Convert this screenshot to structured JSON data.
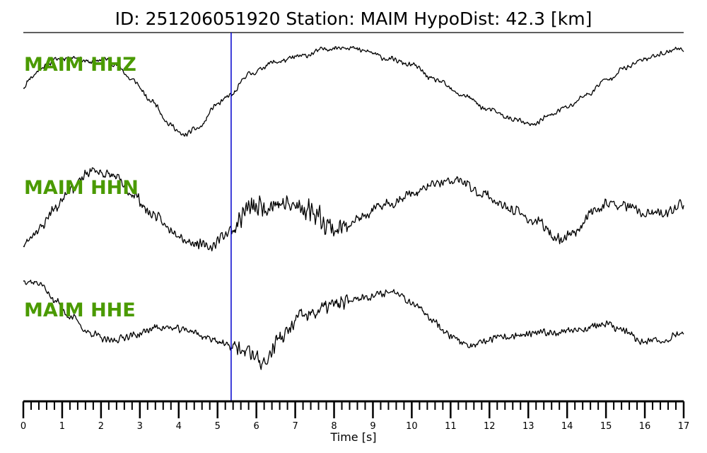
{
  "header": {
    "title": "ID: 251206051920   Station: MAIM   HypoDist:     42.3 [km]"
  },
  "colors": {
    "trace": "#000000",
    "pick_line": "#0000cc",
    "channel_label": "#4a9a00",
    "axis": "#000000"
  },
  "chart_data": {
    "type": "line",
    "title": "ID: 251206051920   Station: MAIM   HypoDist:     42.3 [km]",
    "xlabel": "Time [s]",
    "ylabel": "",
    "xlim": [
      0,
      17
    ],
    "x_ticks": [
      "0",
      "1",
      "2",
      "3",
      "4",
      "5",
      "6",
      "7",
      "8",
      "9",
      "10",
      "11",
      "12",
      "13",
      "14",
      "15",
      "16",
      "17"
    ],
    "minor_tick_step": 0.2,
    "grid": false,
    "pick_time": 5.35,
    "normalized_amplitude": true,
    "series": [
      {
        "name": "MAIM HHZ",
        "noise": 0.05,
        "seed": 11,
        "points": [
          [
            0,
            0.08
          ],
          [
            0.2,
            0.25
          ],
          [
            0.5,
            0.42
          ],
          [
            0.9,
            0.55
          ],
          [
            1.3,
            0.58
          ],
          [
            1.7,
            0.5
          ],
          [
            2.1,
            0.55
          ],
          [
            2.4,
            0.45
          ],
          [
            2.8,
            0.2
          ],
          [
            3.3,
            -0.15
          ],
          [
            3.8,
            -0.55
          ],
          [
            4.1,
            -0.72
          ],
          [
            4.5,
            -0.6
          ],
          [
            5.0,
            -0.2
          ],
          [
            5.35,
            -0.05
          ],
          [
            5.8,
            0.3
          ],
          [
            6.5,
            0.5
          ],
          [
            7.2,
            0.6
          ],
          [
            7.8,
            0.72
          ],
          [
            8.3,
            0.75
          ],
          [
            8.8,
            0.68
          ],
          [
            9.4,
            0.55
          ],
          [
            10.0,
            0.45
          ],
          [
            10.6,
            0.2
          ],
          [
            11.3,
            -0.05
          ],
          [
            12.0,
            -0.3
          ],
          [
            12.6,
            -0.45
          ],
          [
            13.1,
            -0.55
          ],
          [
            13.5,
            -0.4
          ],
          [
            14.0,
            -0.25
          ],
          [
            14.5,
            -0.05
          ],
          [
            15.0,
            0.2
          ],
          [
            15.5,
            0.4
          ],
          [
            16.0,
            0.55
          ],
          [
            16.5,
            0.65
          ],
          [
            16.8,
            0.72
          ],
          [
            17.0,
            0.7
          ]
        ]
      },
      {
        "name": "MAIM HHN",
        "noise": 0.12,
        "seed": 23,
        "points": [
          [
            0,
            -0.7
          ],
          [
            0.4,
            -0.4
          ],
          [
            0.8,
            0.0
          ],
          [
            1.2,
            0.4
          ],
          [
            1.8,
            0.75
          ],
          [
            2.3,
            0.65
          ],
          [
            2.8,
            0.3
          ],
          [
            3.3,
            -0.1
          ],
          [
            3.8,
            -0.4
          ],
          [
            4.3,
            -0.65
          ],
          [
            4.8,
            -0.75
          ],
          [
            5.2,
            -0.5
          ],
          [
            5.35,
            -0.4
          ],
          [
            5.8,
            0.0
          ],
          [
            6.5,
            0.1
          ],
          [
            7.3,
            0.0
          ],
          [
            8.1,
            -0.4
          ],
          [
            8.6,
            -0.2
          ],
          [
            9.4,
            0.1
          ],
          [
            10.0,
            0.3
          ],
          [
            10.7,
            0.5
          ],
          [
            11.2,
            0.55
          ],
          [
            11.8,
            0.3
          ],
          [
            12.5,
            0.0
          ],
          [
            13.2,
            -0.25
          ],
          [
            13.8,
            -0.6
          ],
          [
            14.2,
            -0.45
          ],
          [
            14.6,
            -0.1
          ],
          [
            15.0,
            0.1
          ],
          [
            15.5,
            0.05
          ],
          [
            16.0,
            -0.1
          ],
          [
            16.5,
            -0.1
          ],
          [
            17.0,
            0.1
          ]
        ]
      },
      {
        "name": "MAIM HHE",
        "noise": 0.08,
        "seed": 37,
        "points": [
          [
            0,
            0.95
          ],
          [
            0.4,
            0.9
          ],
          [
            0.8,
            0.6
          ],
          [
            1.2,
            0.3
          ],
          [
            1.7,
            0.0
          ],
          [
            2.2,
            -0.15
          ],
          [
            2.8,
            -0.05
          ],
          [
            3.5,
            0.1
          ],
          [
            4.2,
            0.05
          ],
          [
            4.8,
            -0.1
          ],
          [
            5.35,
            -0.25
          ],
          [
            5.8,
            -0.35
          ],
          [
            6.2,
            -0.55
          ],
          [
            6.6,
            -0.1
          ],
          [
            7.2,
            0.3
          ],
          [
            8.0,
            0.5
          ],
          [
            8.8,
            0.65
          ],
          [
            9.6,
            0.75
          ],
          [
            10.0,
            0.55
          ],
          [
            10.5,
            0.25
          ],
          [
            11.0,
            -0.05
          ],
          [
            11.5,
            -0.25
          ],
          [
            12.2,
            -0.1
          ],
          [
            12.8,
            -0.05
          ],
          [
            13.5,
            0.0
          ],
          [
            14.2,
            0.05
          ],
          [
            15.0,
            0.15
          ],
          [
            15.4,
            0.05
          ],
          [
            15.9,
            -0.15
          ],
          [
            16.4,
            -0.15
          ],
          [
            17.0,
            0.0
          ]
        ]
      }
    ]
  }
}
